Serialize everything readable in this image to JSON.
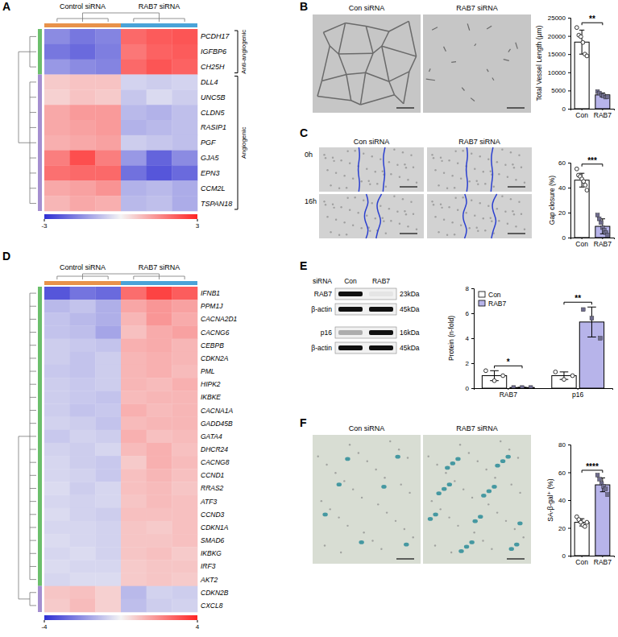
{
  "chart_data": [
    {
      "type": "heatmap",
      "title": "A",
      "column_groups": [
        {
          "label": "Control siRNA",
          "size": 3
        },
        {
          "label": "RAB7 siRNA",
          "size": 3
        }
      ],
      "rows": [
        "PCDH17",
        "IGFBP6",
        "CH25H",
        "DLL4",
        "UNC5B",
        "CLDN5",
        "RASIP1",
        "PGF",
        "GJA5",
        "EPN3",
        "CCM2L",
        "TSPAN18"
      ],
      "row_groups": [
        {
          "label": "Anti-angiogenic",
          "size": 3
        },
        {
          "label": "Angiogenic",
          "size": 9
        }
      ],
      "cells": [
        [
          -1.6,
          -1.9,
          -1.7,
          2.0,
          2.2,
          2.3
        ],
        [
          -1.9,
          -2.1,
          -1.8,
          1.8,
          2.1,
          2.2
        ],
        [
          -1.4,
          -1.6,
          -1.7,
          2.0,
          2.3,
          2.1
        ],
        [
          0.6,
          0.7,
          0.7,
          -0.5,
          -0.6,
          -0.5
        ],
        [
          0.5,
          0.7,
          0.6,
          -0.7,
          -0.4,
          -0.6
        ],
        [
          1.1,
          1.3,
          1.3,
          -0.9,
          -1.0,
          -0.8
        ],
        [
          1.1,
          1.2,
          1.3,
          -1.0,
          -0.9,
          -0.8
        ],
        [
          1.0,
          1.1,
          1.2,
          -0.6,
          -0.7,
          -0.8
        ],
        [
          1.7,
          2.4,
          1.7,
          -1.4,
          -2.2,
          -1.6
        ],
        [
          1.9,
          2.0,
          2.0,
          -2.0,
          -2.4,
          -2.1
        ],
        [
          1.1,
          1.2,
          1.4,
          -1.0,
          -0.9,
          -1.1
        ],
        [
          0.9,
          1.1,
          1.0,
          -0.9,
          -0.8,
          -1.1
        ]
      ],
      "colorbar": {
        "range": [
          -3,
          3
        ],
        "ticks": [
          -3,
          3
        ]
      }
    },
    {
      "type": "bar",
      "title": "B",
      "image_labels": [
        "Con siRNA",
        "RAB7 siRNA"
      ],
      "categories": [
        "Con",
        "RAB7"
      ],
      "values": [
        18300,
        3800
      ],
      "errors": [
        3300,
        550
      ],
      "points": [
        [
          22300,
          20200,
          19800,
          18200,
          15000,
          14500
        ],
        [
          4700,
          4300,
          3800,
          3500,
          3200,
          3300
        ]
      ],
      "colors": [
        "#ffffff",
        "#b7b4ea"
      ],
      "ylabel": "Total Vessel Length (µm)",
      "ylim": [
        0,
        25000
      ],
      "yticks": [
        0,
        5000,
        10000,
        15000,
        20000,
        25000
      ],
      "annotations": [
        "**"
      ]
    },
    {
      "type": "bar",
      "title": "C",
      "image_labels": [
        "Con siRNA",
        "RAB7 siRNA",
        "0h",
        "16h"
      ],
      "categories": [
        "Con",
        "RAB7"
      ],
      "values": [
        46,
        9
      ],
      "errors": [
        5.5,
        6
      ],
      "points": [
        [
          55,
          50,
          49,
          47,
          45,
          42,
          38
        ],
        [
          18,
          15,
          12,
          8,
          6,
          4,
          2
        ]
      ],
      "colors": [
        "#ffffff",
        "#b7b4ea"
      ],
      "ylabel": "Gap closure (%)",
      "ylim": [
        0,
        60
      ],
      "yticks": [
        0,
        20,
        40,
        60
      ],
      "annotations": [
        "***"
      ]
    },
    {
      "type": "heatmap",
      "title": "D",
      "column_groups": [
        {
          "label": "Control siRNA",
          "size": 3
        },
        {
          "label": "RAB7 siRNA",
          "size": 3
        }
      ],
      "rows": [
        "IFNB1",
        "PPM1J",
        "CACNA2D1",
        "CACNG6",
        "CEBPB",
        "CDKN2A",
        "PML",
        "HIPK2",
        "IKBKE",
        "CACNA1A",
        "GADD45B",
        "GATA4",
        "DHCR24",
        "CACNG8",
        "CCND1",
        "RRAS2",
        "ATF3",
        "CCND3",
        "CDKN1A",
        "SMAD6",
        "IKBKG",
        "IRF3",
        "AKT2",
        "CDKN2B",
        "CXCL8"
      ],
      "row_groups": [
        {
          "size": 23
        },
        {
          "size": 2
        }
      ],
      "cells": [
        [
          -3.2,
          -2.6,
          -2.8,
          2.6,
          3.4,
          2.9
        ],
        [
          -1.2,
          -1.0,
          -1.4,
          1.5,
          1.8,
          1.6
        ],
        [
          -1.0,
          -1.2,
          -1.4,
          1.2,
          1.8,
          1.4
        ],
        [
          -1.0,
          -1.1,
          -1.6,
          1.0,
          1.4,
          1.6
        ],
        [
          -0.8,
          -0.9,
          -1.0,
          1.3,
          1.4,
          1.2
        ],
        [
          -0.8,
          -1.0,
          -0.8,
          1.2,
          1.3,
          1.2
        ],
        [
          -0.9,
          -1.0,
          -0.8,
          1.2,
          1.3,
          1.1
        ],
        [
          -0.8,
          -0.9,
          -0.8,
          1.2,
          1.1,
          1.3
        ],
        [
          -0.8,
          -0.9,
          -1.0,
          1.1,
          1.2,
          1.2
        ],
        [
          -0.8,
          -1.0,
          -0.9,
          1.3,
          1.1,
          1.2
        ],
        [
          -0.7,
          -0.8,
          -1.0,
          1.1,
          1.2,
          1.2
        ],
        [
          -0.9,
          -0.7,
          -0.8,
          1.3,
          1.0,
          1.1
        ],
        [
          -0.7,
          -0.8,
          -0.6,
          1.1,
          1.3,
          1.0
        ],
        [
          -0.6,
          -0.8,
          -0.9,
          0.8,
          1.3,
          1.1
        ],
        [
          -0.6,
          -0.7,
          -0.9,
          1.0,
          1.2,
          1.0
        ],
        [
          -0.5,
          -0.8,
          -0.6,
          1.0,
          1.1,
          0.9
        ],
        [
          -0.6,
          -0.7,
          -0.6,
          0.9,
          1.1,
          1.0
        ],
        [
          -0.5,
          -0.7,
          -0.8,
          1.0,
          1.0,
          1.0
        ],
        [
          -0.6,
          -0.6,
          -0.7,
          0.9,
          0.8,
          1.0
        ],
        [
          -0.5,
          -0.6,
          -0.7,
          0.9,
          0.9,
          1.0
        ],
        [
          -0.6,
          -0.5,
          -0.7,
          0.9,
          1.0,
          0.8
        ],
        [
          -0.5,
          -0.6,
          -0.6,
          0.8,
          0.9,
          0.9
        ],
        [
          -0.6,
          -0.5,
          -0.5,
          0.8,
          0.9,
          0.8
        ],
        [
          0.9,
          1.0,
          0.7,
          -1.2,
          -0.7,
          -0.8
        ],
        [
          0.8,
          1.1,
          0.7,
          -1.1,
          -0.8,
          -0.7
        ]
      ],
      "colorbar": {
        "range": [
          -4,
          4
        ],
        "ticks": [
          -4,
          4
        ]
      }
    },
    {
      "type": "bar",
      "title": "E",
      "blot": {
        "header": "siRNA",
        "lanes": [
          "Con",
          "RAB7"
        ],
        "rows": [
          {
            "label": "RAB7",
            "size": "23kDa",
            "intensity": [
              1,
              0.05
            ]
          },
          {
            "label": "β-actin",
            "size": "45kDa",
            "intensity": [
              1,
              1
            ]
          },
          {
            "label": "p16",
            "size": "16kDa",
            "intensity": [
              0.3,
              1
            ]
          },
          {
            "label": "β-actin",
            "size": "45kDa",
            "intensity": [
              1,
              1
            ]
          }
        ]
      },
      "categories": [
        "RAB7",
        "p16"
      ],
      "series": [
        {
          "name": "Con",
          "color": "#ffffff",
          "values": [
            1.0,
            1.0
          ],
          "errors": [
            0.4,
            0.3
          ],
          "points": [
            [
              1.4,
              0.6,
              1.0
            ],
            [
              1.3,
              0.7,
              1.0
            ]
          ]
        },
        {
          "name": "RAB7",
          "color": "#b7b4ea",
          "values": [
            0.05,
            5.3
          ],
          "errors": [
            0.01,
            1.2
          ],
          "points": [
            [
              0.05,
              0.05,
              0.05
            ],
            [
              6.3,
              5.6,
              4.0
            ]
          ]
        }
      ],
      "ylabel": "Protein (n-fold)",
      "ylim": [
        0,
        8
      ],
      "yticks": [
        0,
        2,
        4,
        6,
        8
      ],
      "legend": "top-left",
      "annotations": [
        "*",
        "**"
      ]
    },
    {
      "type": "bar",
      "title": "F",
      "image_labels": [
        "Con siRNA",
        "RAB7 siRNA"
      ],
      "categories": [
        "Con",
        "RAB7"
      ],
      "values": [
        24,
        51
      ],
      "errors": [
        2.6,
        5
      ],
      "points": [
        [
          28,
          26,
          24,
          22,
          21,
          24
        ],
        [
          58,
          55,
          52,
          50,
          48,
          44
        ]
      ],
      "colors": [
        "#ffffff",
        "#b7b4ea"
      ],
      "ylabel": "SA-β-gal⁺ (%)",
      "ylim": [
        0,
        80
      ],
      "yticks": [
        0,
        20,
        40,
        60,
        80
      ],
      "annotations": [
        "****"
      ]
    }
  ]
}
